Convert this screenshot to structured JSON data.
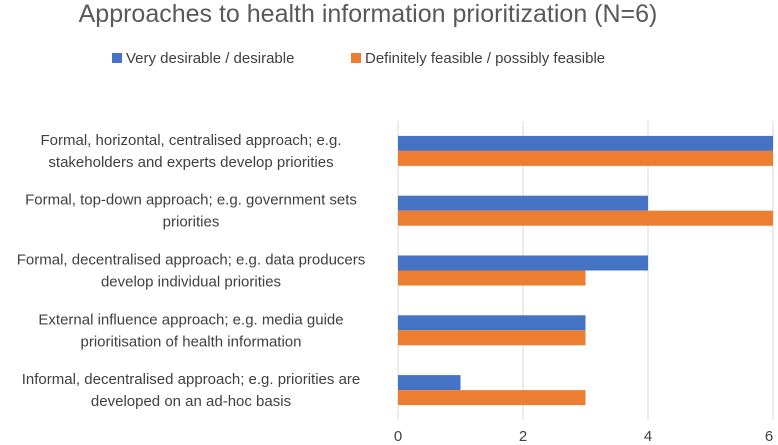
{
  "chart_data": {
    "type": "bar",
    "orientation": "horizontal",
    "title": "Approaches to health information prioritization (N=6)",
    "categories": [
      [
        "Formal, horizontal, centralised approach; e.g.",
        "stakeholders and experts develop priorities"
      ],
      [
        "Formal, top-down approach; e.g. government sets",
        "priorities"
      ],
      [
        "Formal, decentralised approach; e.g. data producers",
        "develop individual priorities"
      ],
      [
        "External influence approach; e.g. media guide",
        "prioritisation of health information"
      ],
      [
        "Informal, decentralised approach; e.g. priorities are",
        "developed on an ad-hoc basis"
      ]
    ],
    "series": [
      {
        "name": "Very desirable / desirable",
        "color": "#4472c4",
        "values": [
          6,
          4,
          4,
          3,
          1
        ]
      },
      {
        "name": "Definitely feasible / possibly feasible",
        "color": "#ed7d31",
        "values": [
          6,
          6,
          3,
          3,
          3
        ]
      }
    ],
    "xlim": [
      0,
      6
    ],
    "xticks": [
      "0",
      "2",
      "4",
      "6"
    ],
    "grid": true,
    "legend_position": "top"
  }
}
